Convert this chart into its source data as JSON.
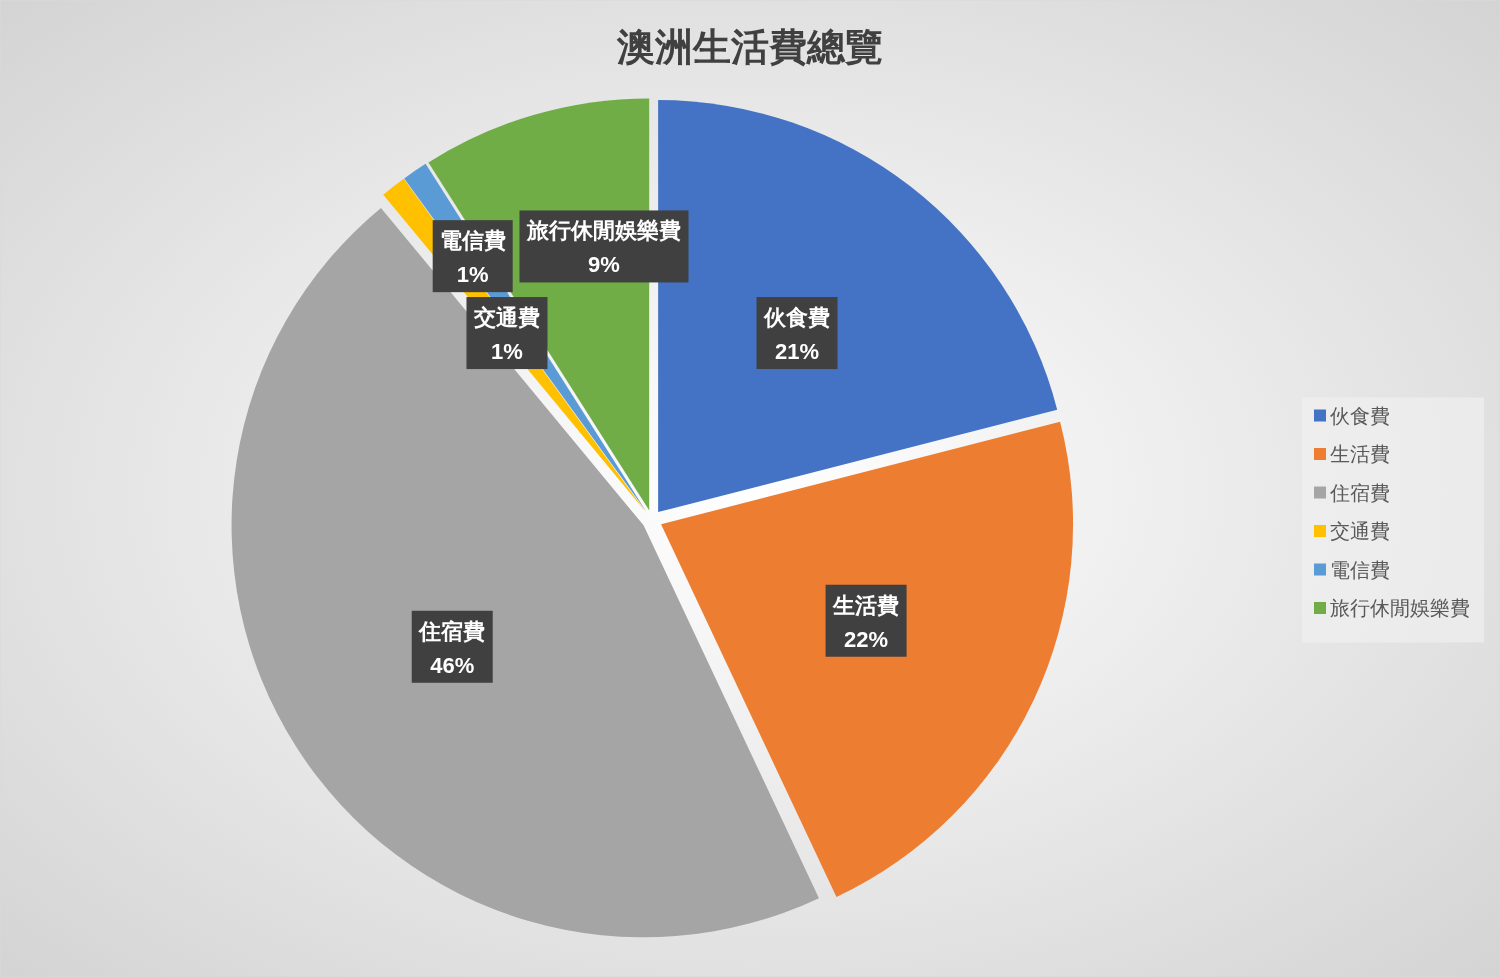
{
  "chart_data": {
    "type": "pie",
    "title": "澳洲生活費總覽",
    "categories": [
      "伙食費",
      "生活費",
      "住宿費",
      "交通費",
      "電信費",
      "旅行休閒娛樂費"
    ],
    "values": [
      21,
      22,
      46,
      1,
      1,
      9
    ],
    "value_labels": [
      "21%",
      "22%",
      "46%",
      "1%",
      "1%",
      "9%"
    ],
    "colors": [
      "#4472c4",
      "#ed7d31",
      "#a5a5a5",
      "#ffc000",
      "#5b9bd5",
      "#70ad47"
    ],
    "legend": "right"
  }
}
